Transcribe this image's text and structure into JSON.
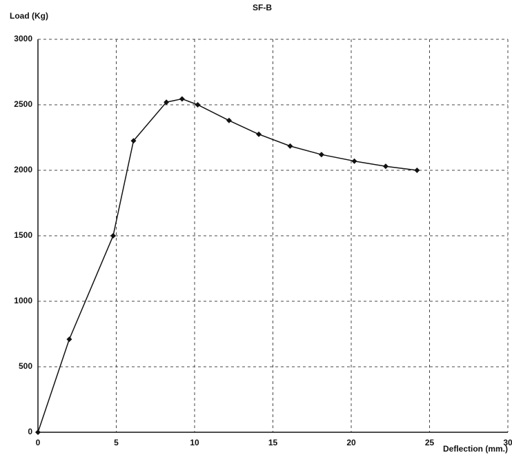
{
  "chart_data": {
    "type": "line",
    "title": "SF-B",
    "ylabel": "Load (Kg)",
    "xlabel": "Deflection (mm.)",
    "x": [
      0,
      2,
      4.8,
      6.1,
      8.2,
      9.2,
      10.2,
      12.2,
      14.1,
      16.1,
      18.1,
      20.2,
      22.2,
      24.2
    ],
    "series": [
      {
        "name": "SF-B",
        "color": "#111111",
        "values": [
          0,
          710,
          1500,
          2225,
          2520,
          2545,
          2500,
          2380,
          2275,
          2185,
          2120,
          2070,
          2030,
          2000
        ]
      }
    ],
    "xlim": [
      0,
      30
    ],
    "xticks": [
      0,
      5,
      10,
      15,
      20,
      25,
      30
    ],
    "ylim": [
      0,
      3000
    ],
    "yticks": [
      0,
      500,
      1000,
      1500,
      2000,
      2500,
      3000
    ],
    "grid": true
  }
}
